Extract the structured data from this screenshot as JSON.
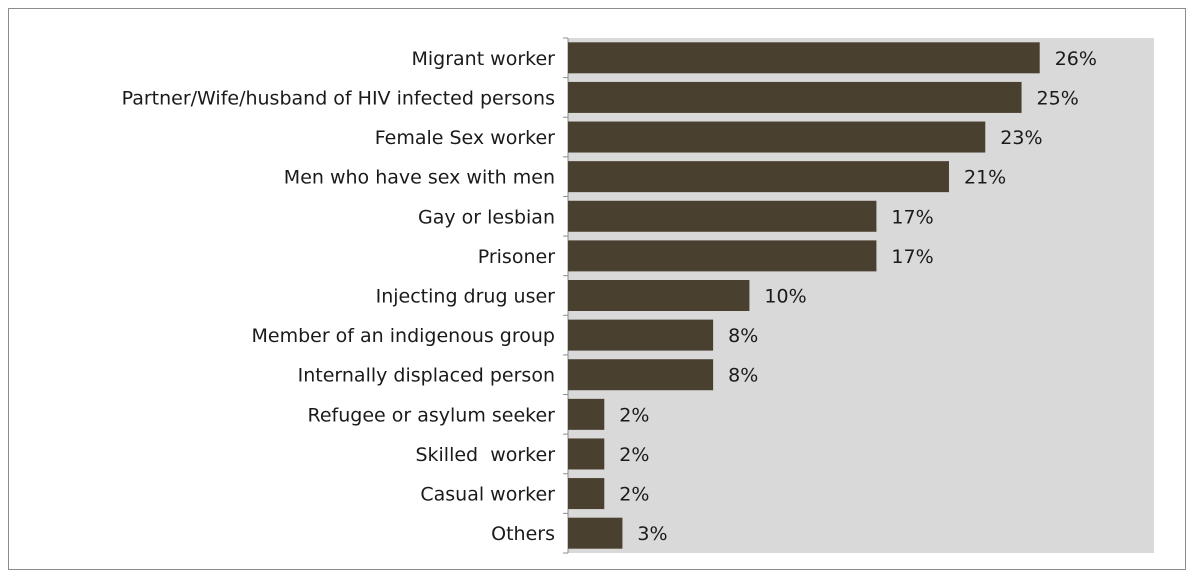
{
  "chart_data": {
    "type": "bar",
    "orientation": "horizontal",
    "categories": [
      "Migrant worker",
      "Partner/Wife/husband of HIV infected persons",
      "Female Sex worker",
      "Men who have sex with men",
      "Gay or lesbian",
      "Prisoner",
      "Injecting drug user",
      "Member of an indigenous group",
      "Internally displaced person",
      "Refugee or asylum seeker",
      "Skilled  worker",
      "Casual worker",
      "Others"
    ],
    "values": [
      26,
      25,
      23,
      21,
      17,
      17,
      10,
      8,
      8,
      2,
      2,
      2,
      3
    ],
    "value_labels": [
      "26%",
      "25%",
      "23%",
      "21%",
      "17%",
      "17%",
      "10%",
      "8%",
      "8%",
      "2%",
      "2%",
      "2%",
      "3%"
    ],
    "unit": "%",
    "xlim": [
      0,
      32.3
    ],
    "grid": false,
    "legend": "none",
    "colors": {
      "bar": "#4a4030",
      "plot_background": "#d9d9d9",
      "axis": "#8c8c8c",
      "text": "#1a1a1a"
    }
  }
}
